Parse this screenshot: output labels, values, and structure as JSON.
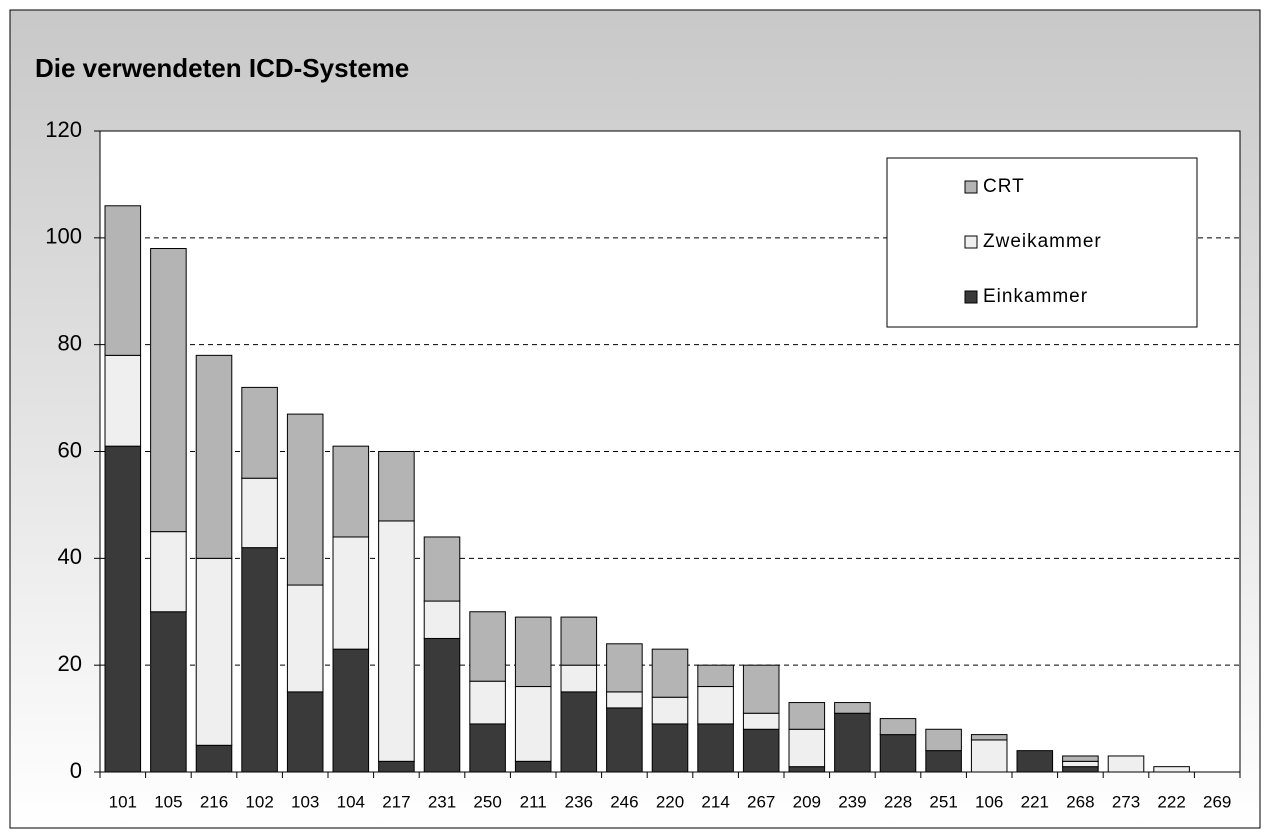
{
  "chart_data": {
    "type": "stacked_bar",
    "title": "Die verwendeten ICD-Systeme",
    "categories": [
      "101",
      "105",
      "216",
      "102",
      "103",
      "104",
      "217",
      "231",
      "250",
      "211",
      "236",
      "246",
      "220",
      "214",
      "267",
      "209",
      "239",
      "228",
      "251",
      "106",
      "221",
      "268",
      "273",
      "222",
      "269"
    ],
    "series": [
      {
        "name": "Einkammer",
        "color": "#3a3a3a",
        "values": [
          61,
          30,
          5,
          42,
          15,
          23,
          2,
          25,
          9,
          2,
          15,
          12,
          9,
          9,
          8,
          1,
          11,
          7,
          4,
          0,
          4,
          1,
          0,
          0,
          0
        ]
      },
      {
        "name": "Zweikammer",
        "color": "#efefef",
        "values": [
          17,
          15,
          35,
          13,
          20,
          21,
          45,
          7,
          8,
          14,
          5,
          3,
          5,
          7,
          3,
          7,
          0,
          0,
          0,
          6,
          0,
          1,
          3,
          1,
          0
        ]
      },
      {
        "name": "CRT",
        "color": "#b4b4b4",
        "values": [
          28,
          53,
          38,
          17,
          32,
          17,
          13,
          12,
          13,
          13,
          9,
          9,
          9,
          4,
          9,
          5,
          2,
          3,
          4,
          1,
          0,
          1,
          0,
          0,
          0
        ]
      }
    ],
    "ylim": [
      0,
      120
    ],
    "yticks": [
      0,
      20,
      40,
      60,
      80,
      100,
      120
    ],
    "grid": true,
    "legend": "top-right"
  }
}
